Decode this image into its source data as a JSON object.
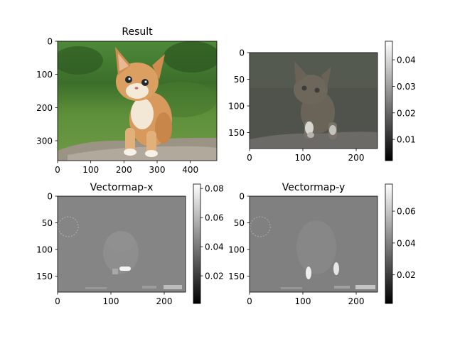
{
  "chart_data": [
    {
      "type": "heatmap",
      "title": "Result",
      "image_description": "kitten sitting on a rock in grass",
      "x_ticks": [
        0,
        100,
        200,
        300,
        400
      ],
      "y_ticks": [
        0,
        100,
        200,
        300
      ],
      "xlim": [
        0,
        480
      ],
      "ylim": [
        360,
        0
      ]
    },
    {
      "type": "heatmap",
      "title": "",
      "image_description": "faded grayscale kitten with bright paws",
      "x_ticks": [
        0,
        100,
        200
      ],
      "y_ticks": [
        0,
        50,
        100,
        150
      ],
      "xlim": [
        0,
        240
      ],
      "ylim": [
        180,
        0
      ],
      "colorbar": {
        "ticks": [
          "0.01",
          "0.02",
          "0.03",
          "0.04"
        ],
        "range": [
          0.002,
          0.047
        ],
        "colormap": "gray"
      }
    },
    {
      "type": "heatmap",
      "title": "Vectormap-x",
      "image_description": "flat gray vector map with faint kitten outline",
      "x_ticks": [
        0,
        100,
        200
      ],
      "y_ticks": [
        0,
        50,
        100,
        150
      ],
      "xlim": [
        0,
        240
      ],
      "ylim": [
        180,
        0
      ],
      "colorbar": {
        "ticks": [
          "0.02",
          "0.04",
          "0.06",
          "0.08"
        ],
        "range": [
          0.001,
          0.083
        ],
        "colormap": "gray"
      }
    },
    {
      "type": "heatmap",
      "title": "Vectormap-y",
      "image_description": "flat gray vector map with faint kitten outline and bright paws",
      "x_ticks": [
        0,
        100,
        200
      ],
      "y_ticks": [
        0,
        50,
        100,
        150
      ],
      "xlim": [
        0,
        240
      ],
      "ylim": [
        180,
        0
      ],
      "colorbar": {
        "ticks": [
          "0.02",
          "0.04",
          "0.06"
        ],
        "range": [
          0.002,
          0.077
        ],
        "colormap": "gray"
      }
    }
  ]
}
